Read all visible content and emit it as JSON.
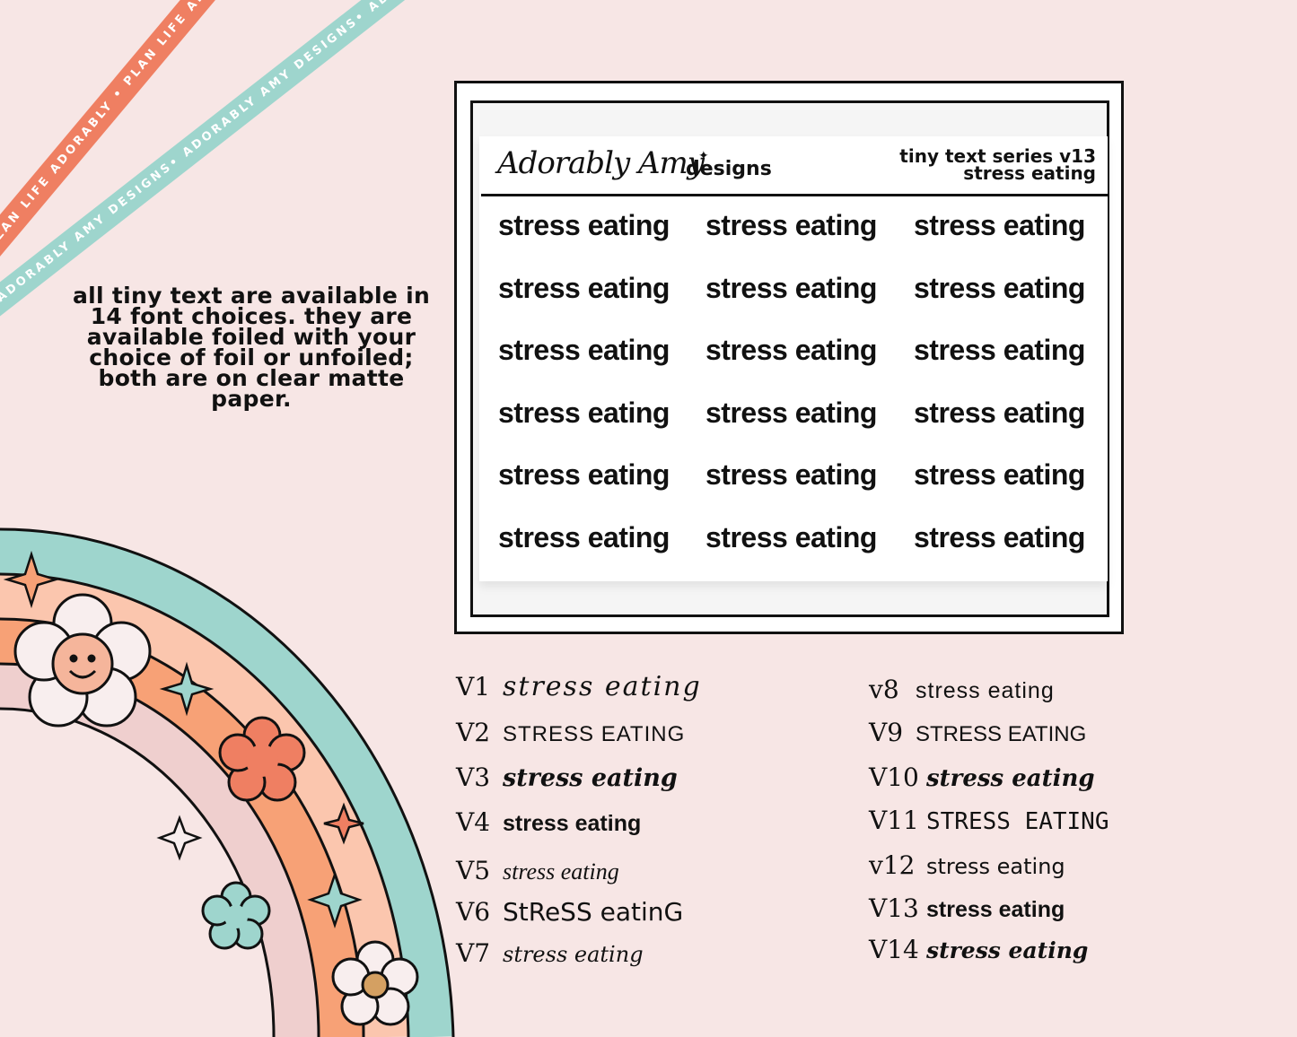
{
  "ribbons": {
    "coral": "PLAN LIFE ADORABLY • PLAN LIFE ADORABLY • PLAN LIFE ADORABLY • PLAN LIFE ADORABLY",
    "teal": "ADORABLY AMY DESIGNS• ADORABLY AMY DESIGNS• ADORABLY AMY DESIGNS• ADORABLY AMY DESIGNS"
  },
  "info_text": "all tiny text are available in 14 font choices. they are available foiled with your choice of foil or unfoiled; both are on clear matte paper.",
  "sheet": {
    "brand": "Adorably Amy",
    "brand_sub": "designs",
    "title_line1": "tiny text series v13",
    "title_line2": "stress eating",
    "sticker_text": "stress eating"
  },
  "variants_left": [
    {
      "label": "V1",
      "text": "stress eating"
    },
    {
      "label": "V2",
      "text": "STRESS EATING"
    },
    {
      "label": "V3",
      "text": "stress eating"
    },
    {
      "label": "V4",
      "text": "stress eating"
    },
    {
      "label": "V5",
      "text": "stress eating"
    },
    {
      "label": "V6",
      "text": "StReSS eatinG"
    },
    {
      "label": "V7",
      "text": "stress eating"
    }
  ],
  "variants_right": [
    {
      "label": "v8",
      "text": "stress eating"
    },
    {
      "label": "V9",
      "text": "STRESS EATING"
    },
    {
      "label": "V10",
      "text": "stress eating"
    },
    {
      "label": "V11",
      "text": "STReSS EATinG"
    },
    {
      "label": "v12",
      "text": "stress eating"
    },
    {
      "label": "V13",
      "text": "stress eating"
    },
    {
      "label": "V14",
      "text": "stress eating"
    }
  ],
  "colors": {
    "background": "#f7e6e5",
    "coral": "#ef7f62",
    "teal": "#9ed5cd",
    "peach": "#f7a176",
    "light_peach": "#fbc6ae",
    "pink": "#efcfce"
  }
}
